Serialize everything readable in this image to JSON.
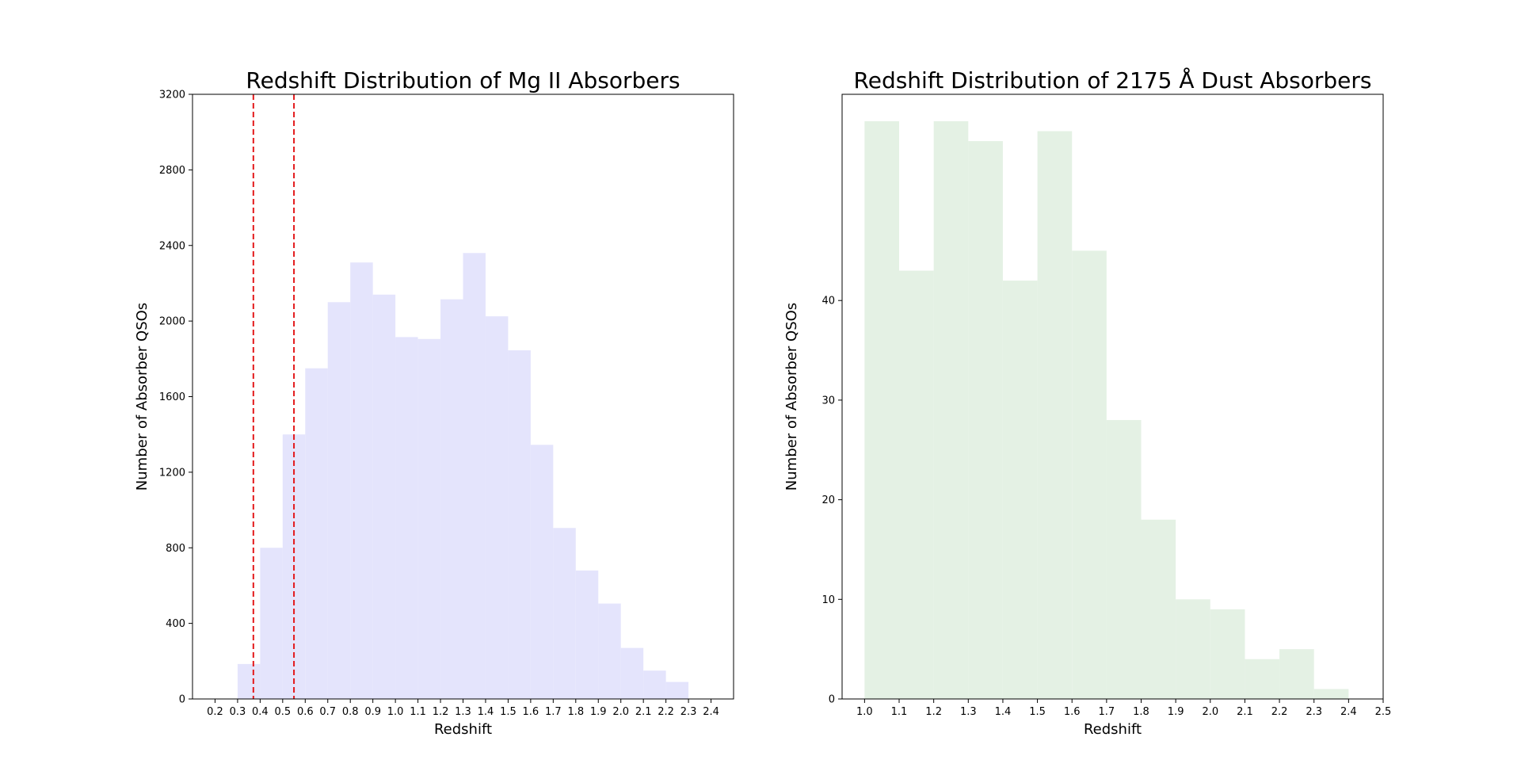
{
  "chart_data": [
    {
      "type": "bar",
      "title": "Redshift Distribution of Mg II Absorbers",
      "xlabel": "Redshift",
      "ylabel": "Number of Absorber QSOs",
      "xlim": [
        0.1,
        2.5
      ],
      "ylim": [
        0,
        3200
      ],
      "xticks": [
        "0.2",
        "0.3",
        "0.4",
        "0.5",
        "0.6",
        "0.7",
        "0.8",
        "0.9",
        "1.0",
        "1.1",
        "1.2",
        "1.3",
        "1.4",
        "1.5",
        "1.6",
        "1.7",
        "1.8",
        "1.9",
        "2.0",
        "2.1",
        "2.2",
        "2.3",
        "2.4"
      ],
      "yticks": [
        "0",
        "400",
        "800",
        "1200",
        "1600",
        "2000",
        "2400",
        "2800",
        "3200"
      ],
      "bin_width": 0.1,
      "bins": [
        {
          "x0": 0.3,
          "value": 185
        },
        {
          "x0": 0.4,
          "value": 800
        },
        {
          "x0": 0.5,
          "value": 1400
        },
        {
          "x0": 0.6,
          "value": 1750
        },
        {
          "x0": 0.7,
          "value": 2100
        },
        {
          "x0": 0.8,
          "value": 2310
        },
        {
          "x0": 0.9,
          "value": 2140
        },
        {
          "x0": 1.0,
          "value": 1915
        },
        {
          "x0": 1.1,
          "value": 1905
        },
        {
          "x0": 1.2,
          "value": 2115
        },
        {
          "x0": 1.3,
          "value": 2360
        },
        {
          "x0": 1.4,
          "value": 2025
        },
        {
          "x0": 1.5,
          "value": 1845
        },
        {
          "x0": 1.6,
          "value": 1345
        },
        {
          "x0": 1.7,
          "value": 905
        },
        {
          "x0": 1.8,
          "value": 680
        },
        {
          "x0": 1.9,
          "value": 505
        },
        {
          "x0": 2.0,
          "value": 270
        },
        {
          "x0": 2.1,
          "value": 150
        },
        {
          "x0": 2.2,
          "value": 90
        }
      ],
      "vlines": [
        0.37,
        0.55
      ],
      "bar_color": "#e4e4fc",
      "vline_color": "#e31a1c"
    },
    {
      "type": "bar",
      "title": "Redshift Distribution of 2175 Å Dust Absorbers",
      "xlabel": "Redshift",
      "ylabel": "Number of Absorber QSOs",
      "xlim": [
        0.935,
        2.5
      ],
      "ylim": [
        0,
        60.7
      ],
      "xticks": [
        "1.0",
        "1.1",
        "1.2",
        "1.3",
        "1.4",
        "1.5",
        "1.6",
        "1.7",
        "1.8",
        "1.9",
        "2.0",
        "2.1",
        "2.2",
        "2.3",
        "2.4",
        "2.5"
      ],
      "yticks": [
        "0",
        "10",
        "20",
        "30",
        "40"
      ],
      "bin_width": 0.1,
      "bins": [
        {
          "x0": 1.0,
          "value": 58
        },
        {
          "x0": 1.1,
          "value": 43
        },
        {
          "x0": 1.2,
          "value": 58
        },
        {
          "x0": 1.3,
          "value": 56
        },
        {
          "x0": 1.4,
          "value": 42
        },
        {
          "x0": 1.5,
          "value": 57
        },
        {
          "x0": 1.6,
          "value": 45
        },
        {
          "x0": 1.7,
          "value": 28
        },
        {
          "x0": 1.8,
          "value": 18
        },
        {
          "x0": 1.9,
          "value": 10
        },
        {
          "x0": 2.0,
          "value": 9
        },
        {
          "x0": 2.1,
          "value": 4
        },
        {
          "x0": 2.2,
          "value": 5
        },
        {
          "x0": 2.3,
          "value": 1
        }
      ],
      "vlines": [],
      "bar_color": "#e4f1e4"
    }
  ]
}
